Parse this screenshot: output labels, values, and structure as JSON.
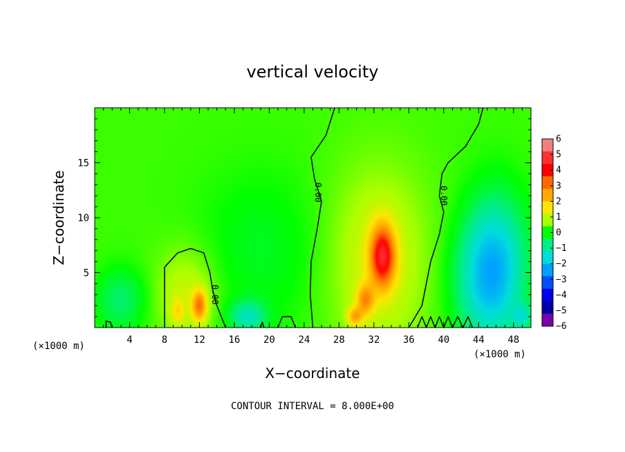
{
  "chart_data": {
    "type": "heatmap",
    "title": "vertical velocity",
    "xlabel": "X−coordinate",
    "ylabel": "Z−coordinate",
    "x_unit": "(×1000 m)",
    "y_unit": "(×1000 m)",
    "xlim": [
      0,
      50
    ],
    "ylim": [
      0,
      20
    ],
    "x_ticks": [
      4,
      8,
      12,
      16,
      20,
      24,
      28,
      32,
      36,
      40,
      44,
      48
    ],
    "x_tick_labels": [
      "4",
      "8",
      "12",
      "16",
      "20",
      "24",
      "28",
      "32",
      "36",
      "40",
      "44",
      "48"
    ],
    "y_ticks": [
      5,
      10,
      15
    ],
    "y_tick_labels": [
      "5",
      "10",
      "15"
    ],
    "colorbar": {
      "levels": [
        6,
        5,
        4,
        3,
        2,
        1,
        0,
        -1,
        -2,
        -3,
        -4,
        -5,
        -6
      ],
      "labels": [
        "6",
        "5",
        "4",
        "3",
        "2",
        "1",
        "0",
        "−1",
        "−2",
        "−3",
        "−4",
        "−5",
        "−6"
      ],
      "colors": [
        "#f08080",
        "#ff3030",
        "#ff0000",
        "#ff6a00",
        "#ffaa00",
        "#ffe600",
        "#aaff00",
        "#00ff00",
        "#00ee88",
        "#00dddd",
        "#00a0ff",
        "#0050ff",
        "#0000ee",
        "#0000aa",
        "#7a00aa"
      ]
    },
    "background_value": 0.3,
    "features": [
      {
        "x": 33.0,
        "z": 6.5,
        "sx": 1.0,
        "sz": 2.0,
        "amp": 3.8
      },
      {
        "x": 32.5,
        "z": 6.0,
        "sx": 4.0,
        "sz": 6.0,
        "amp": 1.0
      },
      {
        "x": 31.0,
        "z": 2.5,
        "sx": 0.7,
        "sz": 1.0,
        "amp": 2.0
      },
      {
        "x": 29.8,
        "z": 1.0,
        "sx": 0.6,
        "sz": 0.6,
        "amp": 1.8
      },
      {
        "x": 12.0,
        "z": 2.0,
        "sx": 0.6,
        "sz": 1.0,
        "amp": 2.5
      },
      {
        "x": 10.5,
        "z": 3.0,
        "sx": 2.5,
        "sz": 3.0,
        "amp": 0.9
      },
      {
        "x": 9.5,
        "z": 1.5,
        "sx": 0.5,
        "sz": 0.8,
        "amp": 1.0
      },
      {
        "x": 46.0,
        "z": 5.5,
        "sx": 2.5,
        "sz": 4.5,
        "amp": -2.2
      },
      {
        "x": 44.0,
        "z": 4.0,
        "sx": 2.5,
        "sz": 4.0,
        "amp": -0.9
      },
      {
        "x": 3.0,
        "z": 2.5,
        "sx": 2.0,
        "sz": 2.0,
        "amp": -1.0
      },
      {
        "x": 17.5,
        "z": 1.0,
        "sx": 1.5,
        "sz": 1.0,
        "amp": -1.5
      },
      {
        "x": 19.0,
        "z": 7.0,
        "sx": 5.0,
        "sz": 5.0,
        "amp": -0.5
      },
      {
        "x": 49.0,
        "z": 1.0,
        "sx": 0.8,
        "sz": 0.8,
        "amp": -1.2
      }
    ],
    "zero_contours": [
      [
        [
          8.0,
          0
        ],
        [
          8.0,
          3
        ],
        [
          8.0,
          5.5
        ],
        [
          9.5,
          6.8
        ],
        [
          11.0,
          7.2
        ],
        [
          12.5,
          6.8
        ],
        [
          13.2,
          5
        ],
        [
          13.5,
          3.5
        ],
        [
          14.0,
          2
        ],
        [
          15.0,
          0
        ]
      ],
      [
        [
          25.0,
          0
        ],
        [
          24.7,
          3
        ],
        [
          24.8,
          6
        ],
        [
          25.5,
          9
        ],
        [
          26.0,
          11.5
        ],
        [
          25.2,
          13.5
        ],
        [
          24.8,
          15.5
        ],
        [
          26.5,
          17.5
        ],
        [
          27.5,
          20
        ]
      ],
      [
        [
          36.0,
          0
        ],
        [
          37.5,
          2
        ],
        [
          38.0,
          4
        ],
        [
          38.5,
          6
        ],
        [
          39.5,
          8.5
        ],
        [
          40.0,
          10.5
        ],
        [
          39.5,
          12
        ],
        [
          39.8,
          14
        ],
        [
          40.5,
          15
        ],
        [
          42.5,
          16.5
        ],
        [
          44.0,
          18.5
        ],
        [
          44.5,
          20
        ]
      ],
      [
        [
          1.3,
          0
        ],
        [
          1.3,
          0.6
        ],
        [
          1.8,
          0.5
        ],
        [
          2.0,
          0
        ]
      ],
      [
        [
          19.0,
          0
        ],
        [
          19.2,
          0.5
        ],
        [
          19.4,
          0
        ]
      ],
      [
        [
          21.0,
          0
        ],
        [
          21.5,
          1.0
        ],
        [
          22.5,
          1.0
        ],
        [
          23.0,
          0
        ]
      ],
      [
        [
          37.0,
          0
        ],
        [
          37.5,
          1.0
        ],
        [
          38.0,
          0
        ],
        [
          38.5,
          1.0
        ],
        [
          39.0,
          0
        ],
        [
          39.5,
          1.0
        ],
        [
          40.0,
          0
        ],
        [
          40.5,
          1.0
        ],
        [
          41.0,
          0
        ],
        [
          41.6,
          1.0
        ],
        [
          42.2,
          0
        ],
        [
          42.8,
          1.0
        ],
        [
          43.3,
          0
        ]
      ]
    ],
    "contour_labels": [
      {
        "text": "0.00",
        "x": 13.8,
        "z": 3.0,
        "rotate": 90
      },
      {
        "text": "0.00",
        "x": 25.6,
        "z": 12.3,
        "rotate": 90
      },
      {
        "text": "0.00",
        "x": 40.0,
        "z": 12.0,
        "rotate": 90
      }
    ]
  },
  "footer": "CONTOUR INTERVAL = 8.000E+00"
}
